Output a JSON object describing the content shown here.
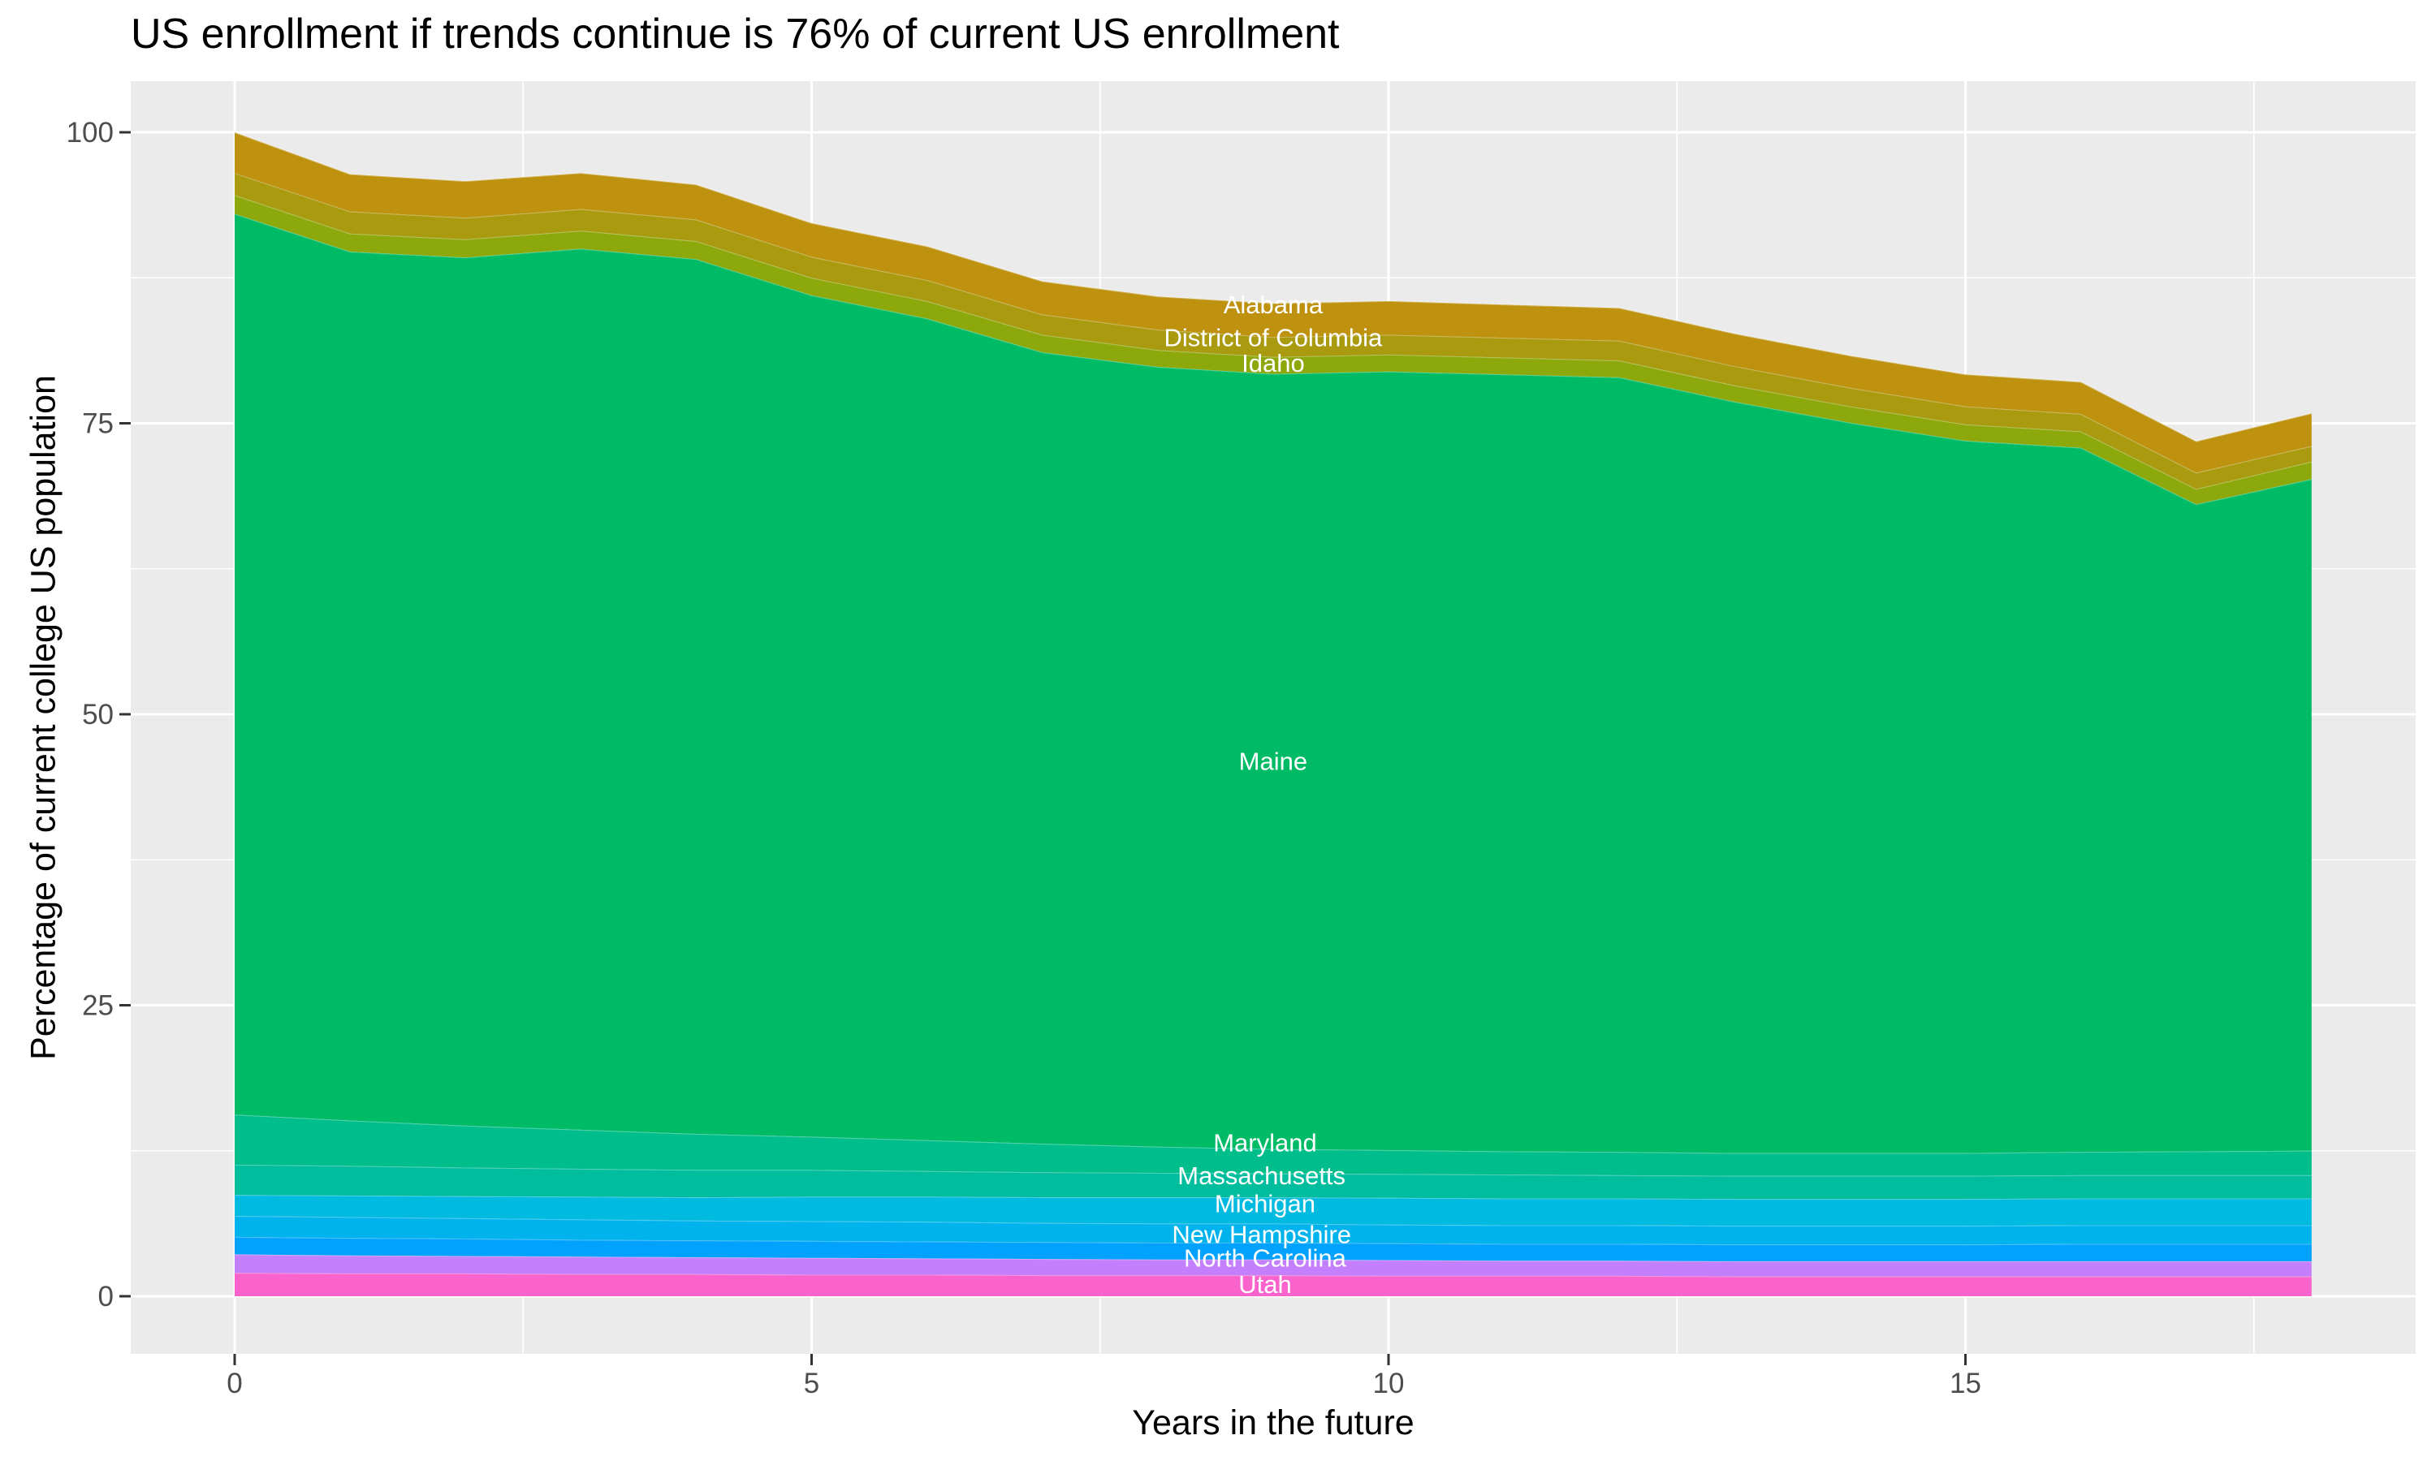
{
  "title": "US enrollment if trends continue is 76% of current US enrollment",
  "x_axis": {
    "label": "Years in the future",
    "ticks": [
      0,
      5,
      10,
      15
    ],
    "tick_labels": [
      "0",
      "5",
      "10",
      "15"
    ],
    "minor_ticks": [
      2.5,
      7.5,
      12.5,
      17.5
    ],
    "range": [
      0,
      18
    ]
  },
  "y_axis": {
    "label": "Percentage of current college US population",
    "ticks": [
      0,
      25,
      50,
      75,
      100
    ],
    "tick_labels": [
      "0",
      "25",
      "50",
      "75",
      "100"
    ],
    "minor_ticks": [
      12.5,
      37.5,
      62.5,
      87.5
    ],
    "range": [
      0,
      100
    ]
  },
  "style": {
    "panel_bg": "#EBEBEB",
    "grid_color": "#FFFFFF",
    "tick_mark_color": "#333333",
    "tick_label_color": "#4D4D4D",
    "text_color": "#000000",
    "area_label_color": "#FFFFFF"
  },
  "chart_data": {
    "type": "area",
    "stacked": true,
    "title": "US enrollment if trends continue is 76% of current US enrollment",
    "xlabel": "Years in the future",
    "ylabel": "Percentage of current college US population",
    "xlim": [
      0,
      18
    ],
    "ylim": [
      0,
      100
    ],
    "grid": true,
    "legend": false,
    "x": [
      0,
      1,
      2,
      3,
      4,
      5,
      6,
      7,
      8,
      9,
      10,
      11,
      12,
      13,
      14,
      15,
      16,
      17,
      18
    ],
    "series": [
      {
        "name": "Utah",
        "color": "#FA62CC",
        "values": [
          2.0,
          1.95,
          1.95,
          1.9,
          1.9,
          1.85,
          1.85,
          1.8,
          1.8,
          1.8,
          1.75,
          1.75,
          1.75,
          1.7,
          1.7,
          1.7,
          1.7,
          1.7,
          1.7
        ]
      },
      {
        "name": "North Carolina",
        "color": "#C480FC",
        "values": [
          1.6,
          1.55,
          1.5,
          1.5,
          1.45,
          1.45,
          1.4,
          1.4,
          1.35,
          1.35,
          1.35,
          1.3,
          1.3,
          1.3,
          1.3,
          1.3,
          1.3,
          1.3,
          1.3
        ]
      },
      {
        "name": "",
        "color": "#00A2FD",
        "values": [
          1.5,
          1.5,
          1.5,
          1.45,
          1.45,
          1.45,
          1.45,
          1.45,
          1.45,
          1.45,
          1.45,
          1.45,
          1.45,
          1.45,
          1.45,
          1.45,
          1.5,
          1.5,
          1.5
        ]
      },
      {
        "name": "New Hampshire",
        "color": "#00B3ED",
        "values": [
          1.8,
          1.8,
          1.75,
          1.75,
          1.7,
          1.7,
          1.7,
          1.65,
          1.65,
          1.65,
          1.6,
          1.6,
          1.6,
          1.6,
          1.6,
          1.6,
          1.6,
          1.6,
          1.6
        ]
      },
      {
        "name": "Michigan",
        "color": "#00BADF",
        "values": [
          1.8,
          1.85,
          1.9,
          1.95,
          2.0,
          2.1,
          2.15,
          2.2,
          2.25,
          2.25,
          2.3,
          2.3,
          2.3,
          2.3,
          2.3,
          2.3,
          2.3,
          2.3,
          2.3
        ]
      },
      {
        "name": "Massachusetts",
        "color": "#00BD9D",
        "values": [
          2.6,
          2.55,
          2.45,
          2.4,
          2.35,
          2.3,
          2.2,
          2.15,
          2.1,
          2.05,
          2.05,
          2.05,
          2.0,
          2.0,
          2.0,
          2.0,
          2.0,
          2.0,
          2.0
        ]
      },
      {
        "name": "Maryland",
        "color": "#00BE8C",
        "values": [
          4.3,
          3.9,
          3.6,
          3.35,
          3.1,
          2.85,
          2.65,
          2.45,
          2.25,
          2.1,
          2.05,
          2.0,
          2.0,
          1.95,
          1.95,
          1.95,
          2.0,
          2.05,
          2.1
        ]
      },
      {
        "name": "Maine",
        "color": "#00BB66",
        "values": [
          77.4,
          74.65,
          74.6,
          75.7,
          75.15,
          72.3,
          70.6,
          68.0,
          67.0,
          66.6,
          66.9,
          66.75,
          66.55,
          64.55,
          62.75,
          61.2,
          60.5,
          55.6,
          57.7
        ]
      },
      {
        "name": "Idaho",
        "color": "#8CA80B",
        "values": [
          1.6,
          1.55,
          1.55,
          1.55,
          1.55,
          1.5,
          1.5,
          1.5,
          1.45,
          1.45,
          1.45,
          1.45,
          1.45,
          1.4,
          1.4,
          1.4,
          1.4,
          1.3,
          1.5
        ]
      },
      {
        "name": "District of Columbia",
        "color": "#AA9A10",
        "values": [
          1.9,
          1.9,
          1.85,
          1.85,
          1.85,
          1.8,
          1.8,
          1.75,
          1.75,
          1.7,
          1.7,
          1.7,
          1.7,
          1.65,
          1.6,
          1.55,
          1.5,
          1.4,
          1.35
        ]
      },
      {
        "name": "Alabama",
        "color": "#BE920F",
        "values": [
          3.5,
          3.2,
          3.15,
          3.1,
          3.0,
          2.9,
          2.9,
          2.85,
          2.85,
          2.9,
          2.9,
          2.85,
          2.8,
          2.8,
          2.75,
          2.75,
          2.75,
          2.7,
          2.8
        ]
      }
    ],
    "labels": [
      {
        "text": "Alabama",
        "x": 9.0,
        "y": 85.2
      },
      {
        "text": "District of Columbia",
        "x": 9.0,
        "y": 82.4
      },
      {
        "text": "Idaho",
        "x": 9.0,
        "y": 80.2
      },
      {
        "text": "Maine",
        "x": 9.0,
        "y": 46.0
      },
      {
        "text": "Maryland",
        "x": 8.93,
        "y": 13.2
      },
      {
        "text": "Massachusetts",
        "x": 8.9,
        "y": 10.4
      },
      {
        "text": "Michigan",
        "x": 8.93,
        "y": 8.0
      },
      {
        "text": "New Hampshire",
        "x": 8.9,
        "y": 5.33
      },
      {
        "text": "North Carolina",
        "x": 8.93,
        "y": 3.3
      },
      {
        "text": "Utah",
        "x": 8.93,
        "y": 1.05
      }
    ]
  }
}
